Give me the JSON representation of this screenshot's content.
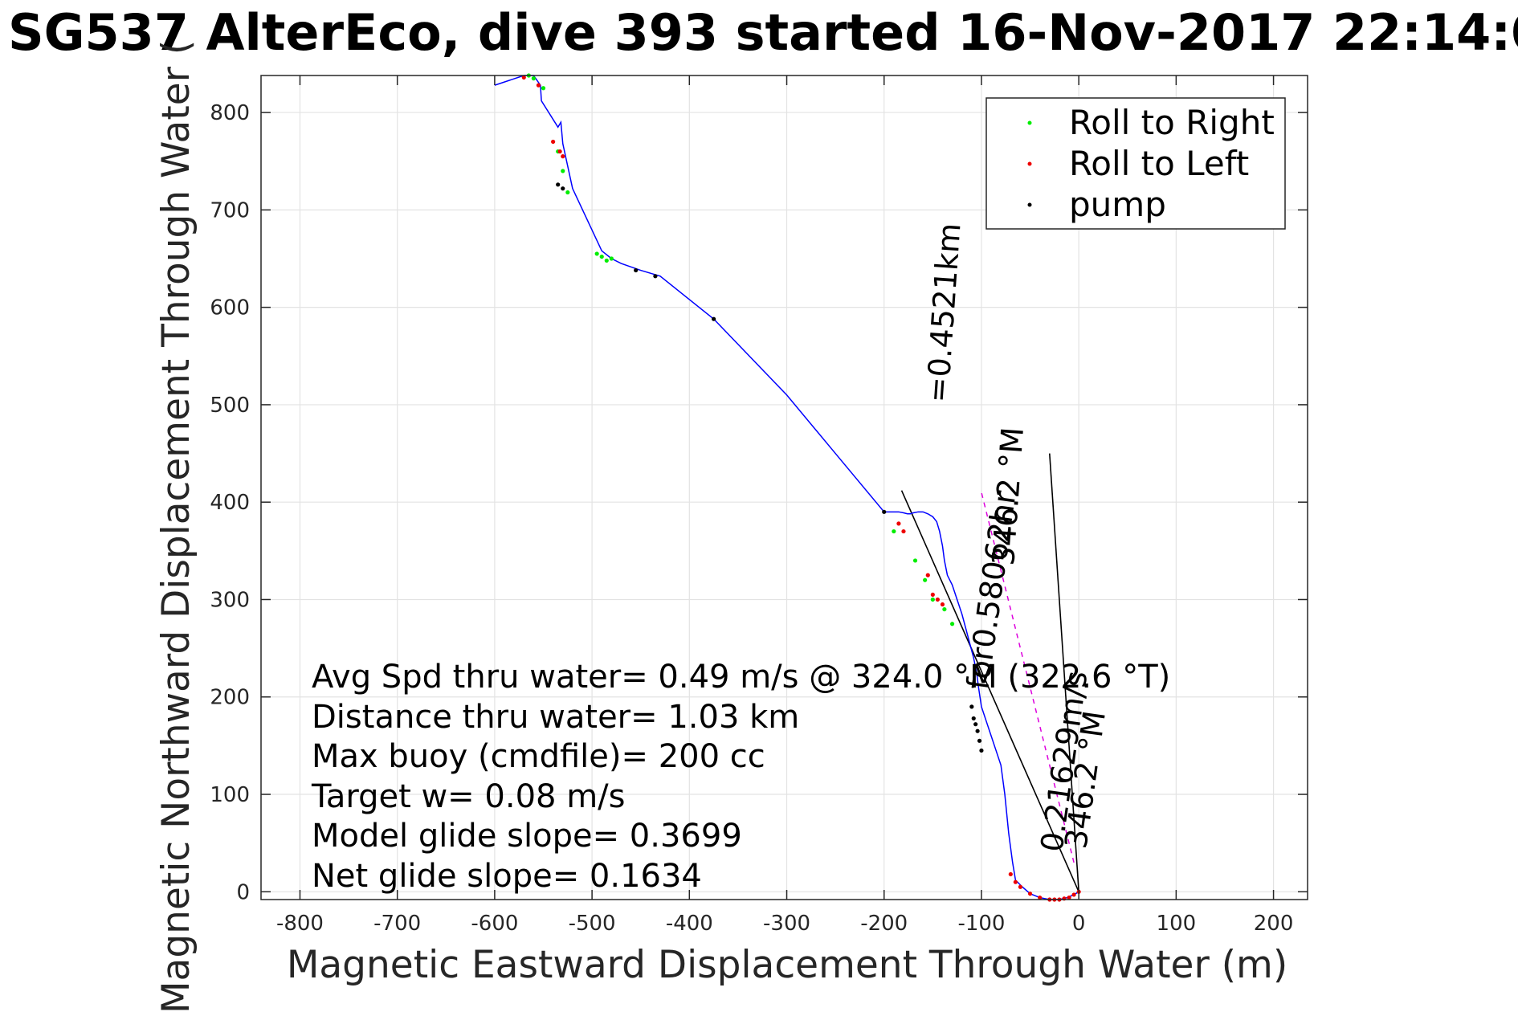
{
  "chart_data": {
    "type": "line",
    "title": "SG537 AlterEco, dive 393 started 16-Nov-2017 22:14:0",
    "xlabel": "Magnetic Eastward Displacement Through Water (m)",
    "ylabel": "Magnetic Northward Displacement Through Water (",
    "xlim": [
      -840,
      235
    ],
    "ylim": [
      -8,
      838
    ],
    "grid": true,
    "xticks": [
      -800,
      -700,
      -600,
      -500,
      -400,
      -300,
      -200,
      -100,
      0,
      100,
      200
    ],
    "yticks": [
      0,
      100,
      200,
      300,
      400,
      500,
      600,
      700,
      800
    ],
    "xtick_labels": [
      "-800",
      "-700",
      "-600",
      "-500",
      "-400",
      "-300",
      "-200",
      "-100",
      "0",
      "100",
      "200"
    ],
    "ytick_labels": [
      "0",
      "100",
      "200",
      "300",
      "400",
      "500",
      "600",
      "700",
      "800"
    ],
    "track": {
      "color": "#0000ff",
      "x": [
        0,
        -5,
        -12,
        -20,
        -30,
        -40,
        -50,
        -58,
        -65,
        -68,
        -72,
        -76,
        -80,
        -85,
        -90,
        -95,
        -100,
        -103,
        -105,
        -108,
        -112,
        -116,
        -120,
        -125,
        -130,
        -135,
        -138,
        -140,
        -143,
        -146,
        -150,
        -155,
        -160,
        -165,
        -170,
        -173,
        -176,
        -180,
        -185,
        -192,
        -200,
        -250,
        -300,
        -375,
        -430,
        -450,
        -470,
        -480,
        -490,
        -520,
        -525,
        -530,
        -532,
        -535,
        -552,
        -553,
        -560,
        -570,
        -600
      ],
      "y": [
        0,
        -3,
        -6,
        -8,
        -8,
        -6,
        -2,
        5,
        12,
        30,
        60,
        100,
        130,
        145,
        160,
        175,
        190,
        210,
        225,
        240,
        255,
        270,
        285,
        300,
        315,
        325,
        340,
        355,
        370,
        380,
        385,
        388,
        390,
        390,
        389,
        388,
        388,
        389,
        390,
        390,
        390,
        450,
        510,
        588,
        632,
        638,
        645,
        650,
        658,
        722,
        745,
        768,
        790,
        785,
        812,
        828,
        838,
        838,
        828
      ]
    },
    "series": [
      {
        "name": "Roll to Right",
        "color": "#00ee00",
        "x": [
          -130,
          -138,
          -150,
          -158,
          -168,
          -190,
          -480,
          -485,
          -490,
          -495,
          -530,
          -535,
          -525,
          -550,
          -560,
          -565
        ],
        "y": [
          275,
          290,
          300,
          320,
          340,
          370,
          650,
          648,
          652,
          655,
          740,
          760,
          718,
          825,
          835,
          838
        ]
      },
      {
        "name": "Roll to Left",
        "color": "#ee0000",
        "x": [
          0,
          -5,
          -10,
          -15,
          -20,
          -25,
          -30,
          -40,
          -50,
          -60,
          -65,
          -70,
          -140,
          -145,
          -150,
          -155,
          -180,
          -185,
          -530,
          -533,
          -540,
          -555,
          -570
        ],
        "y": [
          0,
          -3,
          -6,
          -7,
          -8,
          -8,
          -8,
          -6,
          -2,
          5,
          10,
          18,
          295,
          300,
          305,
          325,
          370,
          378,
          755,
          760,
          770,
          828,
          836
        ]
      },
      {
        "name": "pump",
        "color": "#000000",
        "x": [
          -100,
          -102,
          -104,
          -106,
          -108,
          -110,
          -200,
          -375,
          -435,
          -455,
          -530,
          -535
        ],
        "y": [
          145,
          155,
          165,
          172,
          178,
          190,
          390,
          588,
          632,
          638,
          722,
          726
        ]
      }
    ],
    "reference_lines": [
      {
        "x": [
          0,
          -182
        ],
        "y": [
          0,
          412
        ]
      },
      {
        "x": [
          0,
          -30
        ],
        "y": [
          0,
          450
        ]
      }
    ],
    "legend": {
      "position": "top-right",
      "entries": [
        "Roll to Right",
        "Roll to Left",
        "pump"
      ]
    },
    "annotations": {
      "line1_length": "=0.4521km",
      "line1_heading": "346.2 °M",
      "line2_label": "for0.58062hr",
      "line2_speed": "0.21629m/s",
      "line2_heading": "346.2 °M"
    },
    "info_lines": [
      "Avg Spd thru water=  0.49 m/s @ 324.0 °M (322.6 °T)",
      "Distance thru water=  1.03 km",
      "Max buoy (cmdfile)= 200 cc",
      "Target w= 0.08 m/s",
      "Model glide slope= 0.3699",
      "Net glide slope= 0.1634"
    ]
  }
}
